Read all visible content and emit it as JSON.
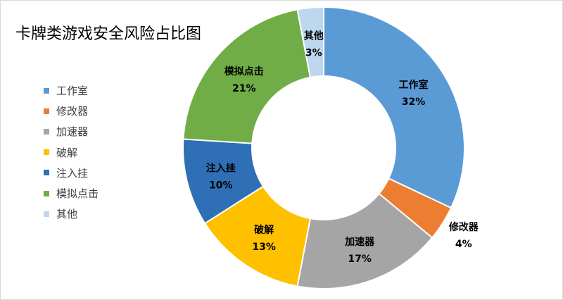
{
  "chart_data": {
    "type": "pie",
    "donut": true,
    "title": "卡牌类游戏安全风险占比图",
    "legend_position": "left",
    "categories": [
      "工作室",
      "修改器",
      "加速器",
      "破解",
      "注入挂",
      "模拟点击",
      "其他"
    ],
    "values": [
      32,
      4,
      17,
      13,
      10,
      21,
      3
    ],
    "value_labels": [
      "32%",
      "4%",
      "17%",
      "13%",
      "10%",
      "21%",
      "3%"
    ],
    "colors": [
      "#5B9BD5",
      "#ED7D31",
      "#A5A5A5",
      "#FFC000",
      "#2E6FB5",
      "#70AD47",
      "#BDD7EE"
    ],
    "label_colors": [
      "#000000",
      "#000000",
      "#000000",
      "#000000",
      "#000000",
      "#000000",
      "#000000"
    ]
  }
}
